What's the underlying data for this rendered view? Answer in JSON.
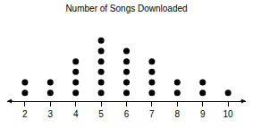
{
  "chart_data": {
    "type": "dot",
    "title": "Number of Songs Downloaded",
    "x": [
      2,
      3,
      4,
      5,
      6,
      7,
      8,
      9,
      10
    ],
    "values": [
      2,
      2,
      4,
      6,
      5,
      4,
      2,
      2,
      1
    ],
    "color": "#000000",
    "xlim": [
      1.3,
      10.7
    ],
    "xticks": [
      2,
      3,
      4,
      5,
      6,
      7,
      8,
      9,
      10
    ],
    "grid": false,
    "tick_labels": "x"
  }
}
